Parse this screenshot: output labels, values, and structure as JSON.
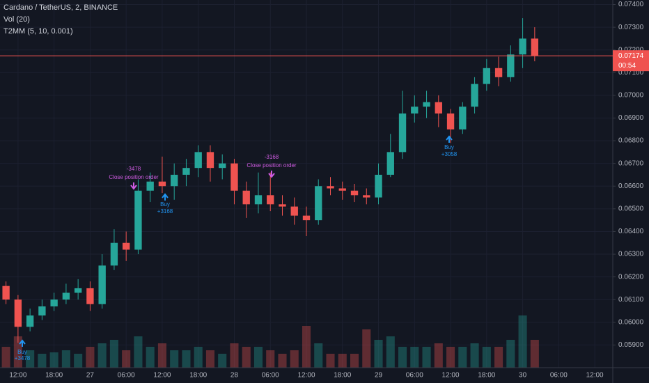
{
  "chart_data": {
    "type": "candlestick",
    "title": "Cardano / TetherUS, 2, BINANCE",
    "indicators": [
      "Vol (20)",
      "T2MM (5, 10, 0.001)"
    ],
    "categories": [
      null,
      "12:00",
      null,
      null,
      "18:00",
      null,
      null,
      "27",
      null,
      null,
      "06:00",
      null,
      null,
      "12:00",
      null,
      null,
      "18:00",
      null,
      null,
      "28",
      null,
      null,
      "06:00",
      null,
      null,
      "12:00",
      null,
      null,
      "18:00",
      null,
      null,
      "29",
      null,
      null,
      "06:00",
      null,
      null,
      "12:00",
      null,
      null,
      "18:00",
      null,
      null,
      "30",
      null,
      null,
      "06:00",
      null,
      null,
      "12:00",
      null
    ],
    "open": [
      0.0616,
      0.061,
      0.0598,
      0.0603,
      0.0607,
      0.061,
      0.0613,
      0.0615,
      0.0608,
      0.0625,
      0.0635,
      0.0632,
      0.0658,
      0.0662,
      0.066,
      0.0665,
      0.0668,
      0.0675,
      0.0668,
      0.067,
      0.0658,
      0.0652,
      0.0656,
      0.0652,
      0.0651,
      0.0647,
      0.0645,
      0.066,
      0.0659,
      0.0658,
      0.0656,
      0.0655,
      0.0665,
      0.0675,
      0.0692,
      0.0695,
      0.0697,
      0.0692,
      0.0685,
      0.0695,
      0.0705,
      0.0712,
      0.0708,
      0.0718,
      0.0725,
      null,
      null,
      null,
      null,
      null,
      null
    ],
    "high": [
      0.0618,
      0.0612,
      0.0606,
      0.061,
      0.0613,
      0.0617,
      0.0619,
      0.0618,
      0.063,
      0.0641,
      0.064,
      0.0663,
      0.0666,
      0.0673,
      0.067,
      0.0672,
      0.0678,
      0.0678,
      0.0674,
      0.0672,
      0.0662,
      0.0666,
      0.0666,
      0.0656,
      0.0655,
      0.0651,
      0.0663,
      0.0664,
      0.0662,
      0.0661,
      0.0659,
      0.067,
      0.0683,
      0.0702,
      0.07,
      0.0702,
      0.07,
      0.0694,
      0.0697,
      0.0708,
      0.0716,
      0.0717,
      0.0722,
      0.0734,
      0.073,
      null,
      null,
      null,
      null,
      null,
      null
    ],
    "low": [
      0.0608,
      0.0591,
      0.0596,
      0.0601,
      0.0605,
      0.0608,
      0.061,
      0.0605,
      0.0606,
      0.0623,
      0.0627,
      0.063,
      0.0653,
      0.0657,
      0.0654,
      0.066,
      0.0664,
      0.0662,
      0.0663,
      0.0652,
      0.0646,
      0.0648,
      0.0649,
      0.0647,
      0.0643,
      0.0638,
      0.0643,
      0.0656,
      0.0654,
      0.0653,
      0.0652,
      0.0652,
      0.0664,
      0.0672,
      0.0688,
      0.069,
      0.0686,
      0.0679,
      0.0683,
      0.0692,
      0.0702,
      0.0704,
      0.0706,
      0.0712,
      0.0715,
      null,
      null,
      null,
      null,
      null,
      null
    ],
    "close": [
      0.061,
      0.0598,
      0.0603,
      0.0607,
      0.061,
      0.0613,
      0.0615,
      0.0608,
      0.0625,
      0.0635,
      0.0632,
      0.0658,
      0.0662,
      0.066,
      0.0665,
      0.0668,
      0.0675,
      0.0668,
      0.067,
      0.0658,
      0.0652,
      0.0656,
      0.0652,
      0.0651,
      0.0647,
      0.0645,
      0.066,
      0.0659,
      0.0658,
      0.0656,
      0.0655,
      0.0665,
      0.0675,
      0.0692,
      0.0695,
      0.0697,
      0.0692,
      0.0685,
      0.0695,
      0.0705,
      0.0712,
      0.0708,
      0.0718,
      0.0725,
      0.07174,
      null,
      null,
      null,
      null,
      null,
      null
    ],
    "volume": [
      30,
      45,
      25,
      20,
      22,
      25,
      20,
      30,
      35,
      40,
      25,
      45,
      30,
      35,
      25,
      25,
      30,
      25,
      20,
      35,
      30,
      30,
      25,
      20,
      25,
      60,
      35,
      20,
      20,
      20,
      55,
      40,
      45,
      30,
      30,
      30,
      35,
      30,
      30,
      35,
      30,
      30,
      40,
      75,
      40,
      null,
      null,
      null,
      null,
      null,
      null
    ],
    "up_color": "#26a69a",
    "down_color": "#ef5350",
    "ylim": [
      0.058,
      0.0742
    ],
    "yticks": [
      {
        "value": 0.059,
        "label": "0.05900"
      },
      {
        "value": 0.06,
        "label": "0.06000"
      },
      {
        "value": 0.061,
        "label": "0.06100"
      },
      {
        "value": 0.062,
        "label": "0.06200"
      },
      {
        "value": 0.063,
        "label": "0.06300"
      },
      {
        "value": 0.064,
        "label": "0.06400"
      },
      {
        "value": 0.065,
        "label": "0.06500"
      },
      {
        "value": 0.066,
        "label": "0.06600"
      },
      {
        "value": 0.067,
        "label": "0.06700"
      },
      {
        "value": 0.068,
        "label": "0.06800"
      },
      {
        "value": 0.069,
        "label": "0.06900"
      },
      {
        "value": 0.07,
        "label": "0.07000"
      },
      {
        "value": 0.071,
        "label": "0.07100"
      },
      {
        "value": 0.072,
        "label": "0.07200"
      },
      {
        "value": 0.073,
        "label": "0.07300"
      },
      {
        "value": 0.074,
        "label": "0.07400"
      }
    ],
    "countdown": "00:54",
    "annotations": [
      {
        "label": "-3478",
        "text": "Close position order"
      },
      {
        "label": "Buy",
        "text": "+3168"
      },
      {
        "label": "-3168",
        "text": "Close position order"
      },
      {
        "label": "Buy",
        "text": "+3058"
      },
      {
        "label": "Buy",
        "text": "+3478"
      }
    ],
    "grid": true
  }
}
